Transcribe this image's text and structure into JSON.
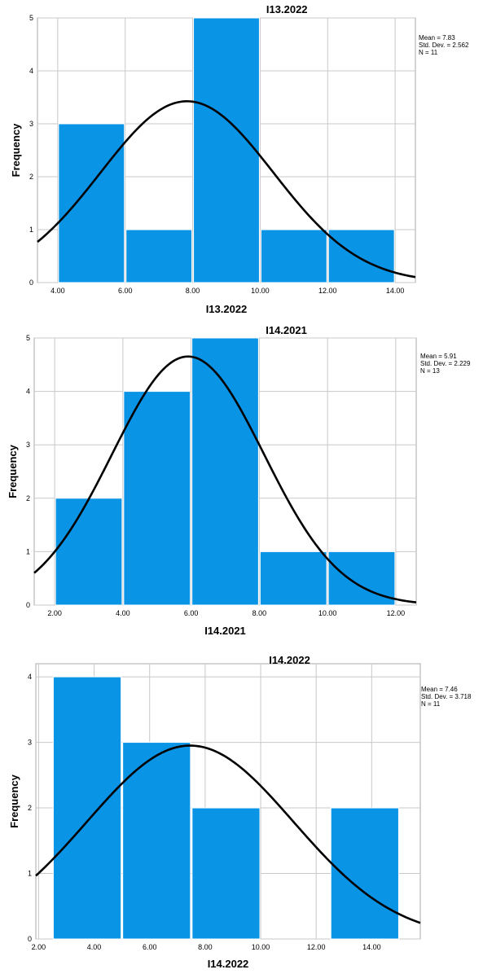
{
  "chart_data": [
    {
      "type": "bar",
      "title": "I13.2022",
      "xlabel": "I13.2022",
      "ylabel": "Frequency",
      "bins": [
        [
          4,
          6
        ],
        [
          6,
          8
        ],
        [
          8,
          10
        ],
        [
          10,
          12
        ],
        [
          12,
          14
        ]
      ],
      "values": [
        3,
        1,
        5,
        1,
        1
      ],
      "xticks": [
        "4.00",
        "6.00",
        "8.00",
        "10.00",
        "12.00",
        "14.00"
      ],
      "yticks": [
        "0",
        "1",
        "2",
        "3",
        "4",
        "5"
      ],
      "xlim": [
        3.4,
        14.6
      ],
      "ylim": [
        0,
        5
      ],
      "stats": {
        "mean_label": "Mean = 7.83",
        "sd_label": "Std. Dev. = 2.562",
        "n_label": "N = 11"
      },
      "normal_curve": {
        "mean": 7.83,
        "sd": 2.562,
        "n": 11,
        "bin_width": 2
      },
      "bar_color": "#0a94e6",
      "grid": true
    },
    {
      "type": "bar",
      "title": "I14.2021",
      "xlabel": "I14.2021",
      "ylabel": "Frequency",
      "bins": [
        [
          2,
          4
        ],
        [
          4,
          6
        ],
        [
          6,
          8
        ],
        [
          8,
          10
        ],
        [
          10,
          12
        ]
      ],
      "values": [
        2,
        4,
        5,
        1,
        1
      ],
      "xticks": [
        "2.00",
        "4.00",
        "6.00",
        "8.00",
        "10.00",
        "12.00"
      ],
      "yticks": [
        "0",
        "1",
        "2",
        "3",
        "4",
        "5"
      ],
      "xlim": [
        1.4,
        12.6
      ],
      "ylim": [
        0,
        5
      ],
      "stats": {
        "mean_label": "Mean = 5.91",
        "sd_label": "Std. Dev. = 2.229",
        "n_label": "N = 13"
      },
      "normal_curve": {
        "mean": 5.91,
        "sd": 2.229,
        "n": 13,
        "bin_width": 2
      },
      "bar_color": "#0a94e6",
      "grid": true
    },
    {
      "type": "bar",
      "title": "I14.2022",
      "xlabel": "I14.2022",
      "ylabel": "Frequency",
      "bins": [
        [
          2.5,
          5
        ],
        [
          5,
          7.5
        ],
        [
          7.5,
          10
        ],
        [
          10,
          12.5
        ],
        [
          12.5,
          15
        ]
      ],
      "values": [
        4,
        3,
        2,
        0,
        2
      ],
      "xticks": [
        "2.00",
        "4.00",
        "6.00",
        "8.00",
        "10.00",
        "12.00",
        "14.00"
      ],
      "yticks": [
        "0",
        "1",
        "2",
        "3",
        "4"
      ],
      "xlim": [
        1.9,
        15.75
      ],
      "ylim": [
        0,
        4.2
      ],
      "stats": {
        "mean_label": "Mean = 7.46",
        "sd_label": "Std. Dev. = 3.718",
        "n_label": "N = 11"
      },
      "normal_curve": {
        "mean": 7.46,
        "sd": 3.718,
        "n": 11,
        "bin_width": 2.5
      },
      "bar_color": "#0a94e6",
      "grid": true
    }
  ]
}
